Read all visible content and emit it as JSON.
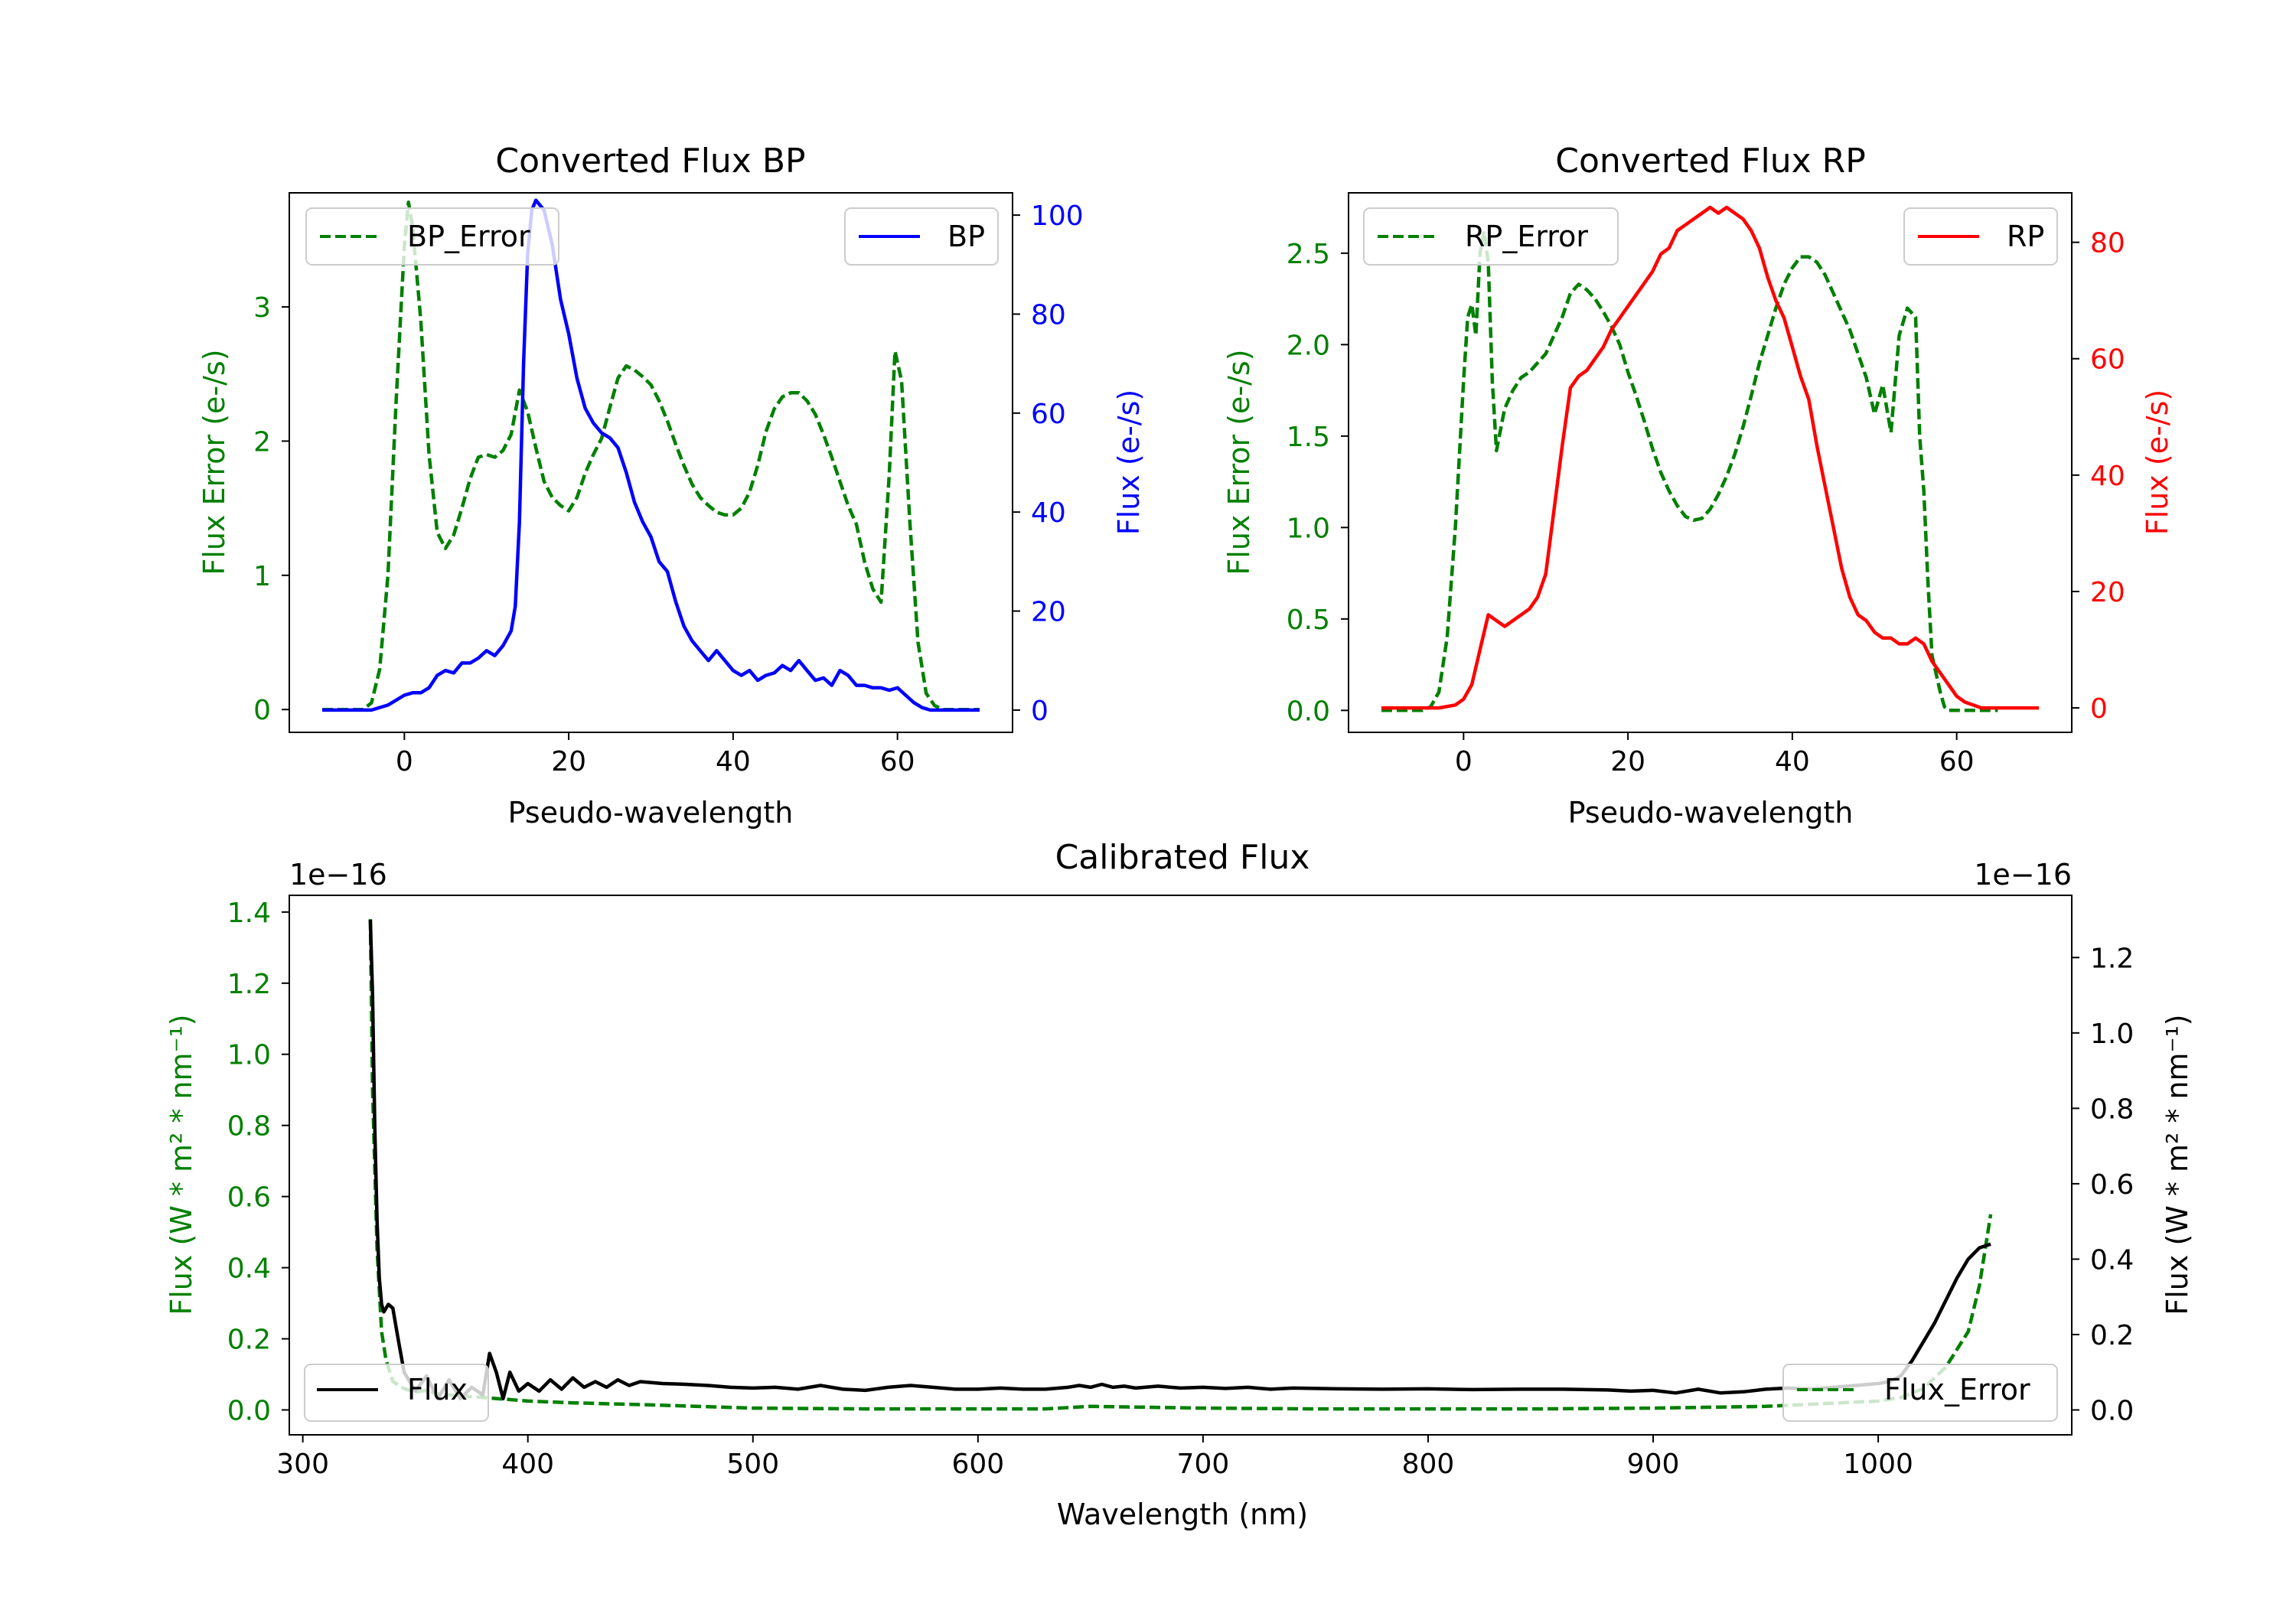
{
  "figure": {
    "background": "#ffffff"
  },
  "colors": {
    "blue": "#0000ff",
    "red": "#ff0000",
    "green": "#008000",
    "black": "#000000"
  },
  "chart_data": [
    {
      "type": "line",
      "id": "bp",
      "title": "Converted Flux BP",
      "xlabel": "Pseudo-wavelength",
      "ylabel_left": "Flux Error (e-/s)",
      "ylabel_right": "Flux (e-/s)",
      "xlim": [
        -14,
        74
      ],
      "ylim_left": [
        -0.17,
        3.85
      ],
      "ylim_right": [
        -4.5,
        104.5
      ],
      "xticks": [
        0,
        20,
        40,
        60
      ],
      "yticks_left": [
        0,
        1,
        2,
        3
      ],
      "yticks_right": [
        0,
        20,
        40,
        60,
        80,
        100
      ],
      "right_axis_color": "#0000ff",
      "left_axis_color": "#008000",
      "series": [
        {
          "name": "BP_Error",
          "axis": "left",
          "color": "#008000",
          "dash": true,
          "legend_pos": "upper-left",
          "x": [
            -10,
            -5,
            -4,
            -3,
            -2,
            -1,
            0,
            0.5,
            1,
            2,
            3,
            4,
            5,
            6,
            7,
            8,
            9,
            10,
            11,
            12,
            13,
            14,
            15,
            16,
            17,
            18,
            19,
            20,
            21,
            22,
            23,
            24,
            25,
            26,
            27,
            28,
            29,
            30,
            31,
            32,
            33,
            34,
            35,
            36,
            37,
            38,
            39,
            40,
            41,
            42,
            43,
            44,
            45,
            46,
            47,
            48,
            49,
            50,
            51,
            52,
            53,
            54,
            55,
            56,
            57,
            58,
            59,
            59.7,
            60.5,
            61.5,
            62.5,
            63.5,
            64.5,
            65.5,
            67,
            70
          ],
          "y": [
            0,
            0,
            0.05,
            0.3,
            1.0,
            2.3,
            3.45,
            3.78,
            3.6,
            2.9,
            1.9,
            1.32,
            1.2,
            1.3,
            1.5,
            1.72,
            1.88,
            1.9,
            1.88,
            1.93,
            2.05,
            2.38,
            2.22,
            1.95,
            1.7,
            1.58,
            1.52,
            1.48,
            1.58,
            1.76,
            1.9,
            2.02,
            2.25,
            2.47,
            2.56,
            2.53,
            2.48,
            2.42,
            2.3,
            2.15,
            1.98,
            1.82,
            1.68,
            1.58,
            1.52,
            1.47,
            1.45,
            1.45,
            1.5,
            1.62,
            1.82,
            2.07,
            2.24,
            2.33,
            2.36,
            2.36,
            2.3,
            2.2,
            2.05,
            1.88,
            1.7,
            1.52,
            1.38,
            1.1,
            0.9,
            0.8,
            1.75,
            2.67,
            2.45,
            1.4,
            0.5,
            0.12,
            0.03,
            0,
            0,
            0
          ]
        },
        {
          "name": "BP",
          "axis": "right",
          "color": "#0000ff",
          "dash": false,
          "legend_pos": "upper-right",
          "x": [
            -10,
            -4,
            -2,
            0,
            1,
            2,
            3,
            4,
            5,
            6,
            7,
            8,
            9,
            10,
            11,
            12,
            13,
            13.5,
            14,
            14.5,
            15,
            15.5,
            16,
            17,
            18,
            19,
            20,
            21,
            22,
            23,
            24,
            25,
            26,
            27,
            28,
            29,
            30,
            31,
            32,
            33,
            34,
            35,
            36,
            37,
            38,
            39,
            40,
            41,
            42,
            43,
            44,
            45,
            46,
            47,
            48,
            49,
            50,
            51,
            52,
            53,
            54,
            55,
            56,
            57,
            58,
            59,
            60,
            61,
            62,
            63,
            64,
            65,
            67,
            70
          ],
          "y": [
            0,
            0,
            1,
            3,
            3.5,
            3.5,
            4.5,
            7,
            8,
            7.5,
            9.5,
            9.5,
            10.5,
            12,
            11,
            13,
            16,
            21,
            38,
            70,
            92,
            101,
            103,
            101,
            94,
            83,
            76,
            67,
            61,
            58,
            56,
            55,
            53,
            48,
            42,
            38,
            35,
            30,
            28,
            22,
            17,
            14,
            12,
            10,
            12,
            10,
            8,
            7,
            8,
            6,
            7,
            7.5,
            9,
            8,
            10,
            8,
            6,
            6.5,
            5,
            8,
            7,
            5,
            5,
            4.5,
            4.5,
            4,
            4.5,
            3,
            1.5,
            0.5,
            0,
            0,
            0,
            0
          ]
        }
      ],
      "legend": [
        "BP_Error",
        "BP"
      ]
    },
    {
      "type": "line",
      "id": "rp",
      "title": "Converted Flux RP",
      "xlabel": "Pseudo-wavelength",
      "ylabel_left": "Flux Error (e-/s)",
      "ylabel_right": "Flux (e-/s)",
      "xlim": [
        -14,
        74
      ],
      "ylim_left": [
        -0.12,
        2.83
      ],
      "ylim_right": [
        -4.2,
        88.5
      ],
      "xticks": [
        0,
        20,
        40,
        60
      ],
      "yticks_left": [
        0.0,
        0.5,
        1.0,
        1.5,
        2.0,
        2.5
      ],
      "yticks_right": [
        0,
        20,
        40,
        60,
        80
      ],
      "right_axis_color": "#ff0000",
      "left_axis_color": "#008000",
      "series": [
        {
          "name": "RP_Error",
          "axis": "left",
          "color": "#008000",
          "dash": true,
          "legend_pos": "upper-left",
          "x": [
            -10,
            -5,
            -4,
            -3,
            -2,
            -1,
            0,
            0.5,
            1,
            1.5,
            2,
            2.5,
            3,
            3.5,
            4,
            5,
            6,
            7,
            8,
            9,
            10,
            11,
            12,
            13,
            14,
            15,
            16,
            17,
            18,
            19,
            20,
            21,
            22,
            23,
            24,
            25,
            26,
            27,
            28,
            29,
            30,
            31,
            32,
            33,
            34,
            35,
            36,
            37,
            38,
            39,
            40,
            41,
            42,
            43,
            44,
            45,
            46,
            47,
            48,
            49,
            50,
            51,
            52,
            53,
            54,
            55,
            55.5,
            56,
            56.5,
            57,
            58,
            58.5,
            59,
            60,
            61,
            62,
            63,
            64,
            65,
            67,
            70
          ],
          "y": [
            0,
            0,
            0.02,
            0.1,
            0.4,
            1.0,
            1.8,
            2.15,
            2.22,
            2.05,
            2.5,
            2.62,
            2.45,
            1.8,
            1.42,
            1.65,
            1.75,
            1.82,
            1.85,
            1.9,
            1.95,
            2.05,
            2.15,
            2.28,
            2.33,
            2.3,
            2.25,
            2.18,
            2.1,
            2.0,
            1.85,
            1.72,
            1.58,
            1.43,
            1.3,
            1.2,
            1.12,
            1.06,
            1.04,
            1.05,
            1.1,
            1.18,
            1.28,
            1.4,
            1.55,
            1.72,
            1.9,
            2.05,
            2.2,
            2.33,
            2.42,
            2.48,
            2.48,
            2.45,
            2.38,
            2.28,
            2.18,
            2.08,
            1.95,
            1.82,
            1.62,
            1.78,
            1.52,
            2.05,
            2.2,
            2.15,
            1.5,
            1.2,
            0.7,
            0.3,
            0.1,
            0.02,
            0,
            0,
            0,
            0,
            0,
            0,
            0,
            0,
            0
          ],
          "clip_x_max": 65
        },
        {
          "name": "RP",
          "axis": "right",
          "color": "#ff0000",
          "dash": false,
          "legend_pos": "upper-right",
          "x": [
            -10,
            -3,
            -1,
            0,
            1,
            2,
            3,
            4,
            5,
            6,
            7,
            8,
            9,
            10,
            11,
            12,
            13,
            14,
            15,
            16,
            17,
            18,
            19,
            20,
            21,
            22,
            23,
            24,
            25,
            26,
            27,
            28,
            29,
            30,
            31,
            32,
            33,
            34,
            35,
            36,
            37,
            38,
            39,
            40,
            41,
            42,
            43,
            44,
            45,
            46,
            47,
            48,
            49,
            50,
            51,
            52,
            53,
            54,
            55,
            56,
            57,
            58,
            59,
            60,
            61,
            62,
            63,
            64,
            65,
            67,
            70
          ],
          "y": [
            0,
            0,
            0.5,
            1.5,
            4,
            10,
            16,
            15,
            14,
            15,
            16,
            17,
            19,
            23,
            34,
            45,
            55,
            57,
            58,
            60,
            62,
            65,
            67,
            69,
            71,
            73,
            75,
            78,
            79,
            82,
            83,
            84,
            85,
            86,
            85,
            86,
            85,
            84,
            82,
            79,
            74,
            70,
            67,
            62,
            57,
            53,
            45,
            38,
            31,
            24,
            19,
            16,
            15,
            13,
            12,
            12,
            11,
            11,
            12,
            11,
            8,
            6,
            4,
            2,
            1,
            0.5,
            0,
            0,
            0,
            0,
            0
          ]
        }
      ],
      "legend": [
        "RP_Error",
        "RP"
      ]
    },
    {
      "type": "line",
      "id": "cal",
      "title": "Calibrated Flux",
      "xlabel": "Wavelength (nm)",
      "ylabel_left": "Flux (W * m² * nm⁻¹)",
      "ylabel_right": "Flux (W * m² * nm⁻¹)",
      "offset_left": "1e−16",
      "offset_right": "1e−16",
      "xlim": [
        294,
        1086
      ],
      "ylim_left": [
        -0.07,
        1.447
      ],
      "ylim_right": [
        -0.066,
        1.365
      ],
      "xticks": [
        300,
        400,
        500,
        600,
        700,
        800,
        900,
        1000
      ],
      "yticks_left": [
        0.0,
        0.2,
        0.4,
        0.6,
        0.8,
        1.0,
        1.2,
        1.4
      ],
      "yticks_right": [
        0.0,
        0.2,
        0.4,
        0.6,
        0.8,
        1.0,
        1.2
      ],
      "right_axis_color": "#000000",
      "left_axis_color": "#008000",
      "series": [
        {
          "name": "Flux_Error",
          "axis": "left",
          "color": "#008000",
          "dash": true,
          "legend_pos": "lower-right",
          "x": [
            330,
            331,
            333,
            335,
            337,
            340,
            345,
            350,
            355,
            360,
            370,
            380,
            390,
            400,
            420,
            450,
            500,
            550,
            600,
            630,
            650,
            700,
            750,
            800,
            850,
            900,
            950,
            1000,
            1010,
            1020,
            1030,
            1040,
            1045,
            1050
          ],
          "y": [
            1.38,
            0.9,
            0.45,
            0.22,
            0.14,
            0.08,
            0.06,
            0.05,
            0.055,
            0.045,
            0.04,
            0.035,
            0.03,
            0.025,
            0.02,
            0.015,
            0.005,
            0.003,
            0.003,
            0.003,
            0.01,
            0.005,
            0.003,
            0.003,
            0.003,
            0.005,
            0.01,
            0.025,
            0.035,
            0.06,
            0.12,
            0.22,
            0.35,
            0.55
          ]
        },
        {
          "name": "Flux",
          "axis": "right",
          "color": "#000000",
          "dash": false,
          "legend_pos": "lower-left",
          "x": [
            330,
            331,
            332,
            333,
            334,
            335,
            336,
            338,
            340,
            342,
            345,
            350,
            355,
            360,
            365,
            370,
            375,
            380,
            383,
            386,
            389,
            392,
            396,
            400,
            405,
            410,
            415,
            420,
            425,
            430,
            435,
            440,
            445,
            450,
            460,
            470,
            480,
            490,
            500,
            510,
            520,
            530,
            540,
            550,
            560,
            570,
            580,
            590,
            600,
            610,
            620,
            630,
            640,
            645,
            650,
            655,
            660,
            665,
            670,
            680,
            690,
            700,
            710,
            720,
            730,
            740,
            760,
            780,
            800,
            820,
            840,
            860,
            880,
            890,
            900,
            910,
            920,
            930,
            940,
            950,
            960,
            970,
            980,
            990,
            1000,
            1005,
            1010,
            1015,
            1020,
            1025,
            1030,
            1035,
            1040,
            1045,
            1050
          ],
          "y": [
            1.3,
            1.1,
            0.75,
            0.5,
            0.35,
            0.28,
            0.26,
            0.28,
            0.27,
            0.2,
            0.1,
            0.05,
            0.09,
            0.03,
            0.08,
            0.03,
            0.06,
            0.04,
            0.15,
            0.1,
            0.03,
            0.1,
            0.05,
            0.07,
            0.05,
            0.08,
            0.055,
            0.085,
            0.06,
            0.075,
            0.06,
            0.08,
            0.065,
            0.075,
            0.07,
            0.068,
            0.065,
            0.06,
            0.058,
            0.06,
            0.055,
            0.065,
            0.055,
            0.052,
            0.06,
            0.065,
            0.06,
            0.055,
            0.055,
            0.058,
            0.055,
            0.055,
            0.06,
            0.065,
            0.06,
            0.068,
            0.06,
            0.063,
            0.058,
            0.063,
            0.058,
            0.06,
            0.057,
            0.06,
            0.055,
            0.058,
            0.056,
            0.055,
            0.056,
            0.054,
            0.055,
            0.055,
            0.053,
            0.05,
            0.052,
            0.045,
            0.055,
            0.045,
            0.048,
            0.055,
            0.058,
            0.055,
            0.06,
            0.065,
            0.07,
            0.075,
            0.09,
            0.13,
            0.18,
            0.23,
            0.29,
            0.35,
            0.4,
            0.43,
            0.44
          ]
        }
      ],
      "legend": [
        "Flux",
        "Flux_Error"
      ]
    }
  ]
}
